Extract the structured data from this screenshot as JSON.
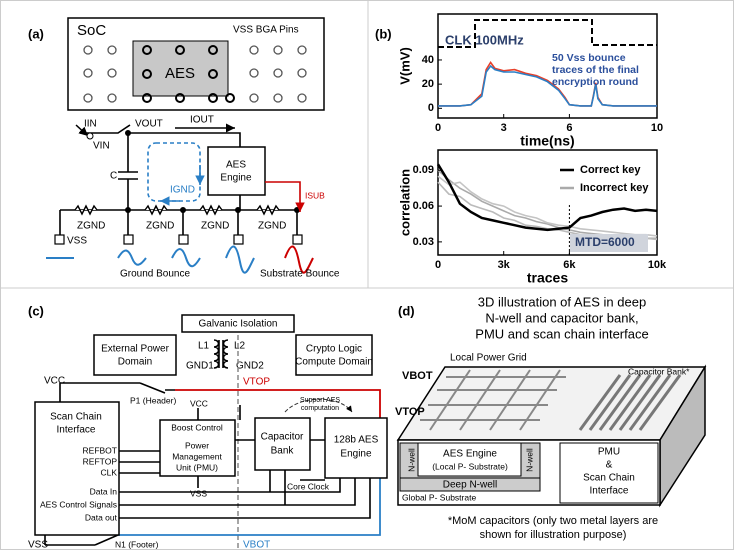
{
  "panels": {
    "a": {
      "label": "(a)",
      "soc": "SoC",
      "pins": "VSS BGA Pins",
      "aes": "AES",
      "iin": "IIN",
      "vin": "VIN",
      "vout": "VOUT",
      "iout": "IOUT",
      "c": "C",
      "ignd": "IGND",
      "engine": [
        "AES",
        "Engine"
      ],
      "isub": "ISUB",
      "zgnd": [
        "ZGND",
        "ZGND",
        "ZGND",
        "ZGND"
      ],
      "vss": "VSS",
      "ground_bounce": "Ground Bounce",
      "substrate_bounce": "Substrate Bounce"
    },
    "b": {
      "label": "(b)"
    },
    "c": {
      "label": "(c)",
      "isolation": "Galvanic Isolation",
      "l1": "L1",
      "l2": "L2",
      "gnd1": "GND1",
      "gnd2": "GND2",
      "external": [
        "External Power",
        "Domain"
      ],
      "crypto": [
        "Crypto Logic",
        "Compute Domain"
      ],
      "vcc": "VCC",
      "p1": "P1 (Header)",
      "vtop": "VTOP",
      "scan": [
        "Scan Chain",
        "Interface"
      ],
      "boost": "Boost Control",
      "vcc2": "VCC",
      "refbot": "REFBOT",
      "reftop": "REFTOP",
      "clk": "CLK",
      "pmu": [
        "Power",
        "Management",
        "Unit (PMU)"
      ],
      "capbank": [
        "Capacitor",
        "Bank"
      ],
      "support": [
        "Support AES",
        "computation"
      ],
      "engine": [
        "128b AES",
        "Engine"
      ],
      "core_clock": "Core Clock",
      "vss2": "VSS",
      "data_in": "Data In",
      "control": "AES Control Signals",
      "data_out": "Data out",
      "n1": "N1 (Footer)",
      "vss": "VSS",
      "vbot": "VBOT"
    },
    "d": {
      "label": "(d)",
      "title": [
        "3D illustration of AES in deep",
        "N-well and capacitor bank,",
        "PMU and scan chain interface"
      ],
      "grid": "Local Power Grid",
      "vbot": "VBOT",
      "vtop": "VTOP",
      "capbank": "Capacitor Bank*",
      "engine": [
        "AES Engine",
        "(Local P- Substrate)"
      ],
      "nwell": [
        "N-well",
        "N-well"
      ],
      "deep": "Deep N-well",
      "global": "Global P- Substrate",
      "pmu": [
        "PMU",
        "&",
        "Scan Chain",
        "Interface"
      ],
      "footnote": [
        "*MoM capacitors (only two metal layers are",
        "shown for illustration purpose)"
      ]
    }
  },
  "chart_data": [
    {
      "type": "line",
      "xlabel": "time(ns)",
      "ylabel": "V(mV)",
      "annotations": [
        "CLK 100MHz",
        "50 Vss bounce",
        "traces of the final",
        "encryption round"
      ],
      "x": [
        0,
        0.5,
        1,
        1.5,
        2,
        2.2,
        2.4,
        2.6,
        3,
        3.5,
        4,
        4.5,
        5,
        5.5,
        5.8,
        6,
        6.5,
        7,
        7.1,
        7.2,
        7.3,
        7.5,
        8,
        9,
        10
      ],
      "series": [
        {
          "color": "#e8402a",
          "values": [
            2,
            2,
            2,
            3,
            12,
            32,
            38,
            33,
            31,
            32,
            29,
            27,
            23,
            16,
            9,
            3,
            2,
            2,
            11,
            21,
            9,
            3,
            2,
            2,
            2
          ]
        },
        {
          "color": "#2a7fc6",
          "values": [
            2,
            2,
            2,
            3,
            10,
            30,
            35,
            32,
            30,
            30,
            28,
            26,
            22,
            15,
            8,
            3,
            2,
            2,
            10,
            20,
            8,
            3,
            2,
            2,
            2
          ]
        }
      ],
      "xlim": [
        0,
        10
      ],
      "xticks": [
        0,
        3,
        6,
        10
      ],
      "ylim": [
        -8,
        78
      ],
      "yticks": [
        0,
        20,
        40
      ]
    },
    {
      "type": "line",
      "xlabel": "traces",
      "ylabel": "correlation",
      "annotations": [
        "MTD=6000"
      ],
      "x": [
        0,
        500,
        1000,
        1500,
        2000,
        2500,
        3000,
        3500,
        4000,
        4500,
        5000,
        5500,
        6000,
        6500,
        7000,
        7500,
        8000,
        8500,
        9000,
        9500,
        10000
      ],
      "series": [
        {
          "name": "Incorrect key",
          "color": "#aaaaaa",
          "values": [
            0.09,
            0.082,
            0.075,
            0.07,
            0.064,
            0.06,
            0.056,
            0.052,
            0.05,
            0.047,
            0.045,
            0.042,
            0.04,
            0.038,
            0.037,
            0.036,
            0.035,
            0.034,
            0.034,
            0.033,
            0.033
          ]
        },
        {
          "color": "#bbbbbb",
          "values": [
            0.08,
            0.07,
            0.068,
            0.061,
            0.058,
            0.055,
            0.05,
            0.048,
            0.044,
            0.043,
            0.041,
            0.04,
            0.038,
            0.036,
            0.036,
            0.035,
            0.034,
            0.034,
            0.033,
            0.033,
            0.032
          ]
        },
        {
          "color": "#c4c4c4",
          "values": [
            0.085,
            0.078,
            0.08,
            0.072,
            0.066,
            0.062,
            0.06,
            0.055,
            0.052,
            0.05,
            0.046,
            0.044,
            0.043,
            0.041,
            0.04,
            0.039,
            0.038,
            0.037,
            0.036,
            0.036,
            0.035
          ]
        },
        {
          "name": "Correct key",
          "color": "#000000",
          "values": [
            0.095,
            0.08,
            0.062,
            0.055,
            0.05,
            0.048,
            0.046,
            0.044,
            0.042,
            0.041,
            0.04,
            0.041,
            0.042,
            0.05,
            0.052,
            0.055,
            0.057,
            0.058,
            0.056,
            0.057,
            0.056
          ]
        }
      ],
      "xlim": [
        0,
        10000
      ],
      "xticks": [
        0,
        {
          "value": 3000,
          "label": "3k"
        },
        {
          "value": 6000,
          "label": "6k"
        },
        {
          "value": 10000,
          "label": "10k"
        }
      ],
      "ylim": [
        0.019,
        0.107
      ],
      "yticks": [
        0.03,
        0.06,
        0.09
      ]
    }
  ]
}
